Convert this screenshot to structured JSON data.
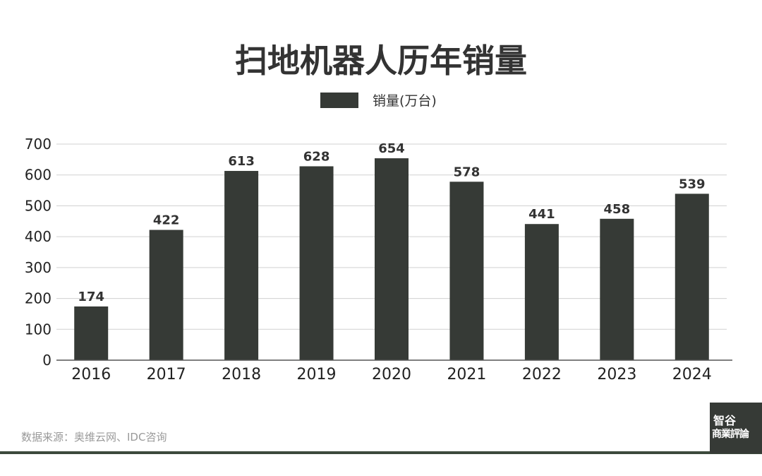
{
  "chart_data": {
    "type": "bar",
    "title": "扫地机器人历年销量",
    "categories": [
      "2016",
      "2017",
      "2018",
      "2019",
      "2020",
      "2021",
      "2022",
      "2023",
      "2024"
    ],
    "series": [
      {
        "name": "销量(万台)",
        "values": [
          174,
          422,
          613,
          628,
          654,
          578,
          441,
          458,
          539
        ]
      }
    ],
    "ylim": [
      0,
      700
    ],
    "yticks": [
      0,
      100,
      200,
      300,
      400,
      500,
      600,
      700
    ],
    "grid": true,
    "legend": "top-center",
    "bar_color": "#363a36"
  },
  "footer": {
    "source": "数据来源：奥维云网、IDC咨询",
    "logo_line1": "智谷",
    "logo_line2": "商業評論"
  }
}
